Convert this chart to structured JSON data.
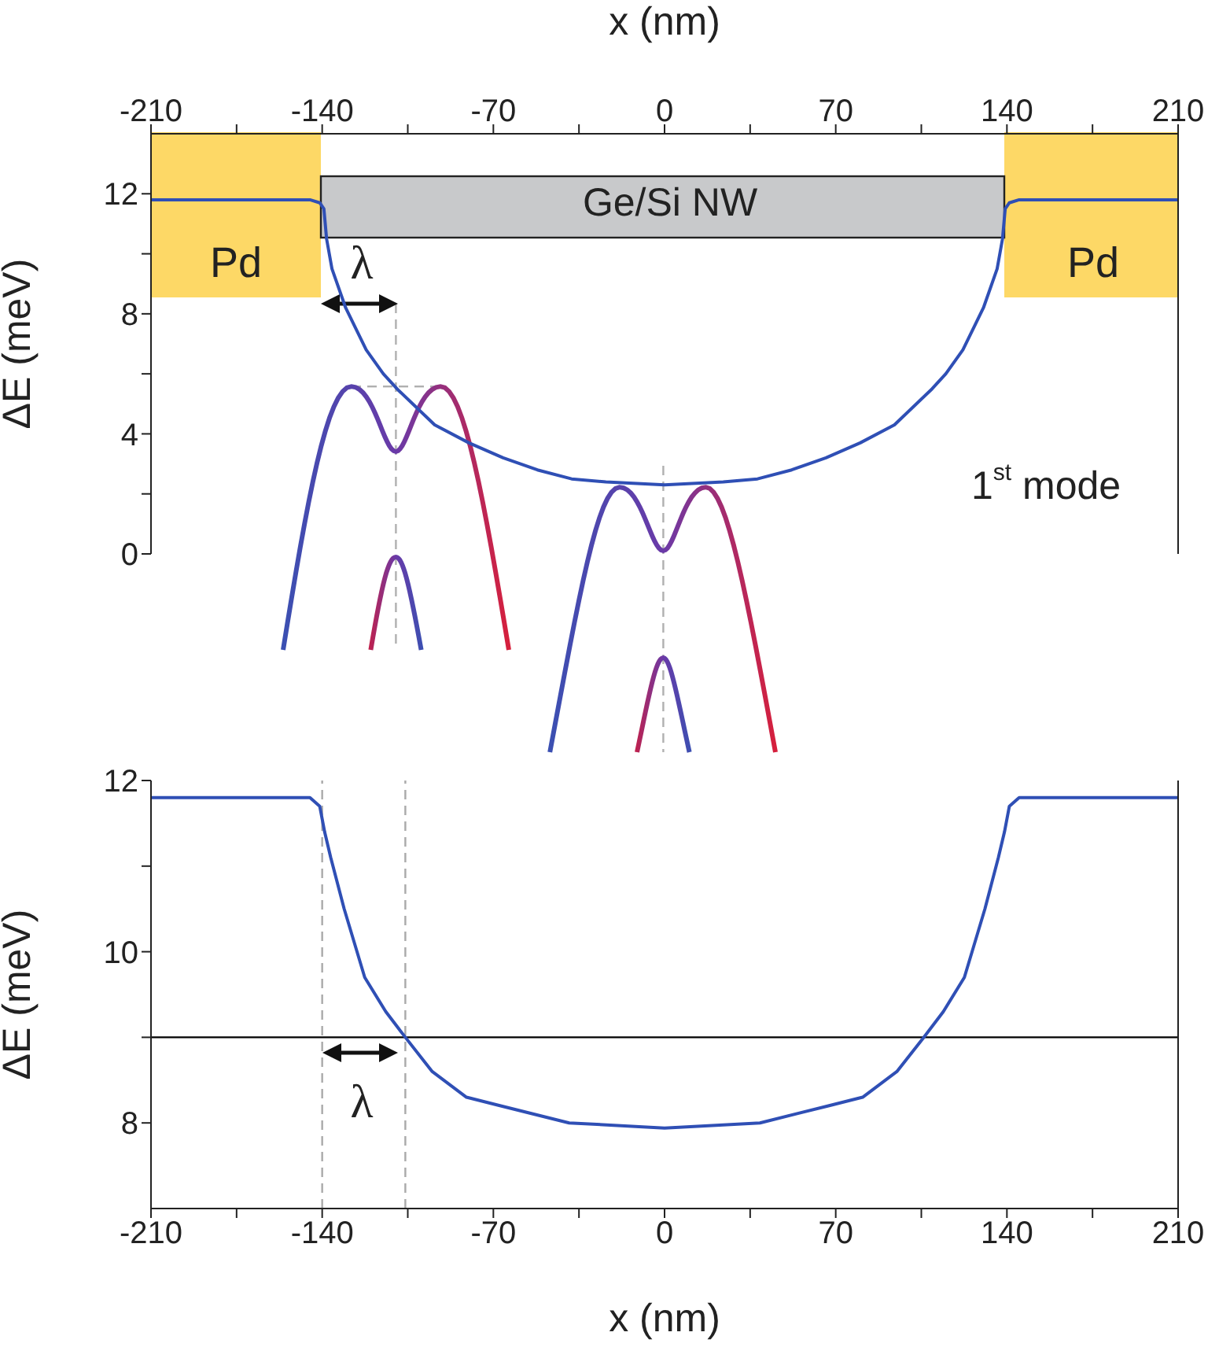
{
  "chart_data": [
    {
      "type": "line",
      "xlabel": "x (nm)",
      "ylabel": "ΔE (meV)",
      "xlim": [
        -210,
        210
      ],
      "xticks": [
        -210,
        {
          "value": -175,
          "label": null
        },
        -140,
        {
          "value": -105,
          "label": null
        },
        -70,
        {
          "value": -35,
          "label": null
        },
        0,
        {
          "value": 35,
          "label": null
        },
        70,
        {
          "value": 105,
          "label": null
        },
        140,
        {
          "value": 175,
          "label": null
        },
        210
      ],
      "ylim": [
        0,
        14
      ],
      "yticks": [
        0,
        {
          "value": 2,
          "label": null
        },
        4,
        {
          "value": 6,
          "label": null
        },
        8,
        {
          "value": 10,
          "label": null
        },
        12
      ],
      "grid": false,
      "legend": false,
      "marker": "none",
      "series": [
        {
          "color": "#2f4fb5",
          "x": [
            -210,
            -145,
            -141,
            -139.3,
            -138.2,
            -136,
            -130.4,
            -122,
            -115,
            -109.4,
            -94,
            -80,
            -66,
            -52,
            -38,
            -24,
            0,
            24,
            38,
            52,
            66,
            80,
            94,
            109.4,
            115,
            122,
            130.4,
            136,
            138.2,
            139.3,
            141,
            145,
            210
          ],
          "values": [
            11.8,
            11.8,
            11.7,
            11.5,
            10.5,
            9.5,
            8.2,
            6.8,
            6.0,
            5.5,
            4.3,
            3.7,
            3.2,
            2.8,
            2.5,
            2.4,
            2.3,
            2.4,
            2.5,
            2.8,
            3.2,
            3.7,
            4.3,
            5.5,
            6.0,
            6.8,
            8.2,
            9.5,
            10.5,
            11.5,
            11.7,
            11.8,
            11.8
          ]
        }
      ],
      "annotations": [
        "Pd",
        "Pd",
        "Ge/Si NW",
        "λ",
        "1$^{st}$ mode"
      ]
    },
    {
      "type": "line",
      "xlabel": "x (nm)",
      "ylabel": "ΔE (meV)",
      "xlim": [
        -210,
        210
      ],
      "xticks": [
        -210,
        {
          "value": -175,
          "label": null
        },
        -140,
        {
          "value": -105,
          "label": null
        },
        -70,
        {
          "value": -35,
          "label": null
        },
        0,
        {
          "value": 35,
          "label": null
        },
        70,
        {
          "value": 105,
          "label": null
        },
        140,
        {
          "value": 175,
          "label": null
        },
        210
      ],
      "ylim": [
        7,
        12
      ],
      "yticks": [
        8,
        {
          "value": 9,
          "label": null
        },
        10,
        {
          "value": 11,
          "label": null
        },
        12
      ],
      "grid": false,
      "legend": false,
      "marker": "none",
      "series": [
        {
          "color": "#2f4fb5",
          "x": [
            -210,
            -145,
            -141,
            -139,
            -136.5,
            -131,
            -122.6,
            -114,
            -106,
            -95,
            -81,
            -67,
            -39,
            0,
            39,
            67,
            81,
            95,
            106,
            114,
            122.6,
            131,
            136.5,
            139,
            141,
            145,
            210
          ],
          "values": [
            11.8,
            11.8,
            11.7,
            11.4,
            11.1,
            10.5,
            9.7,
            9.3,
            9.0,
            8.6,
            8.3,
            8.2,
            8.0,
            7.94,
            8.0,
            8.2,
            8.3,
            8.6,
            9.0,
            9.3,
            9.7,
            10.5,
            11.1,
            11.4,
            11.7,
            11.8,
            11.8
          ]
        }
      ],
      "ref_lines": [
        {
          "axis": "y",
          "value": 9,
          "color": "#000000",
          "line_style": "solid"
        },
        {
          "axis": "x",
          "value": -140,
          "color": "#aaaaaa",
          "line_style": "dashed"
        },
        {
          "axis": "x",
          "value": -106,
          "color": "#aaaaaa",
          "line_style": "dashed"
        }
      ],
      "annotations": [
        "λ"
      ]
    }
  ]
}
